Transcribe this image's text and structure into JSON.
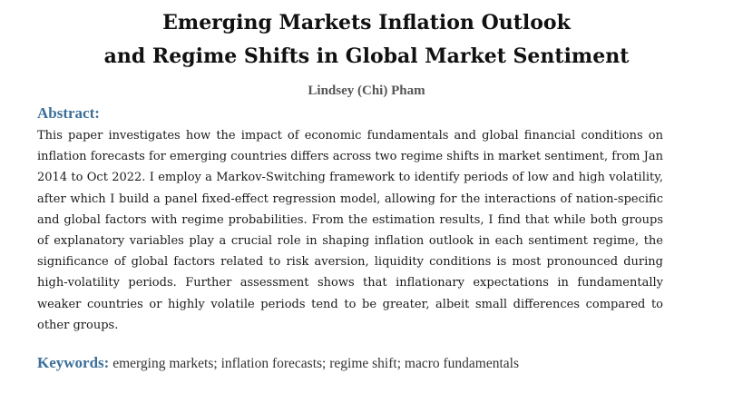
{
  "title": {
    "line1": "Emerging Markets Inflation Outlook",
    "line2": "and Regime Shifts in Global Market Sentiment"
  },
  "author": "Lindsey (Chi) Pham",
  "abstract": {
    "heading": "Abstract:",
    "text": "This paper investigates how the impact of economic fundamentals and global financial conditions on inflation forecasts for emerging countries differs across two regime shifts in market sentiment, from Jan 2014 to Oct 2022. I employ a Markov-Switching framework to identify periods of low and high volatility, after which I build a panel fixed-effect regression model, allowing for the interactions of nation-specific and global factors with regime probabilities. From the estimation results, I find that while both groups of explanatory variables play a crucial role in shaping inflation outlook in each sentiment regime, the significance of global factors related to risk aversion, liquidity conditions is most pronounced during high-volatility periods. Further assessment shows that inflationary expectations in fundamentally weaker countries or highly volatile periods tend to be greater, albeit small differences compared to other groups."
  },
  "keywords": {
    "label": "Keywords:",
    "text": "emerging markets; inflation forecasts; regime shift; macro fundamentals"
  },
  "colors": {
    "heading_accent": "#3b6f99",
    "title": "#111111",
    "author": "#555555"
  }
}
